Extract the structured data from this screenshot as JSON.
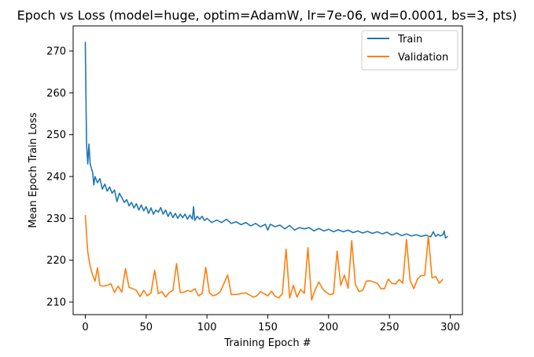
{
  "chart_data": {
    "type": "line",
    "title": "Epoch vs Loss (model=huge, optim=AdamW, lr=7e-06, wd=0.0001, bs=3, pts)",
    "xlabel": "Training Epoch #",
    "ylabel": "Mean Epoch Train Loss",
    "xlim": [
      -10,
      310
    ],
    "ylim": [
      207,
      276
    ],
    "xticks": [
      0,
      50,
      100,
      150,
      200,
      250,
      300
    ],
    "yticks": [
      210,
      220,
      230,
      240,
      250,
      260,
      270
    ],
    "legend_position": "top-right",
    "grid": false,
    "series": [
      {
        "name": "Train",
        "color": "#1f77b4",
        "points": [
          [
            0,
            272.2
          ],
          [
            1,
            248.0
          ],
          [
            2,
            243.0
          ],
          [
            3,
            247.8
          ],
          [
            4,
            243.0
          ],
          [
            5,
            242.0
          ],
          [
            6,
            241.0
          ],
          [
            7,
            238.0
          ],
          [
            8,
            240.0
          ],
          [
            10,
            238.5
          ],
          [
            12,
            239.5
          ],
          [
            14,
            237.0
          ],
          [
            16,
            238.2
          ],
          [
            18,
            236.5
          ],
          [
            20,
            237.5
          ],
          [
            22,
            236.0
          ],
          [
            24,
            236.8
          ],
          [
            26,
            234.0
          ],
          [
            28,
            236.0
          ],
          [
            30,
            235.0
          ],
          [
            32,
            233.8
          ],
          [
            34,
            234.5
          ],
          [
            36,
            233.0
          ],
          [
            38,
            233.8
          ],
          [
            40,
            232.5
          ],
          [
            42,
            233.5
          ],
          [
            44,
            232.0
          ],
          [
            46,
            233.2
          ],
          [
            48,
            231.8
          ],
          [
            50,
            232.8
          ],
          [
            52,
            231.2
          ],
          [
            54,
            232.5
          ],
          [
            56,
            231.0
          ],
          [
            58,
            232.0
          ],
          [
            60,
            231.5
          ],
          [
            62,
            232.6
          ],
          [
            64,
            231.0
          ],
          [
            66,
            232.0
          ],
          [
            68,
            230.5
          ],
          [
            70,
            231.5
          ],
          [
            72,
            230.2
          ],
          [
            74,
            231.2
          ],
          [
            76,
            230.0
          ],
          [
            78,
            231.0
          ],
          [
            80,
            230.2
          ],
          [
            82,
            231.0
          ],
          [
            84,
            229.8
          ],
          [
            86,
            230.8
          ],
          [
            88,
            229.8
          ],
          [
            89,
            232.8
          ],
          [
            90,
            229.5
          ],
          [
            92,
            230.5
          ],
          [
            94,
            229.8
          ],
          [
            96,
            230.5
          ],
          [
            98,
            229.5
          ],
          [
            100,
            230.0
          ],
          [
            104,
            229.0
          ],
          [
            108,
            229.6
          ],
          [
            112,
            229.0
          ],
          [
            116,
            229.8
          ],
          [
            120,
            228.8
          ],
          [
            124,
            229.2
          ],
          [
            128,
            228.5
          ],
          [
            132,
            229.0
          ],
          [
            136,
            228.2
          ],
          [
            140,
            228.8
          ],
          [
            144,
            228.0
          ],
          [
            148,
            228.6
          ],
          [
            150,
            227.2
          ],
          [
            152,
            228.6
          ],
          [
            156,
            228.0
          ],
          [
            160,
            228.4
          ],
          [
            164,
            227.5
          ],
          [
            168,
            228.3
          ],
          [
            172,
            227.2
          ],
          [
            176,
            227.8
          ],
          [
            180,
            227.5
          ],
          [
            184,
            227.8
          ],
          [
            188,
            227.0
          ],
          [
            192,
            227.6
          ],
          [
            196,
            227.0
          ],
          [
            200,
            227.4
          ],
          [
            204,
            226.8
          ],
          [
            208,
            227.3
          ],
          [
            212,
            226.8
          ],
          [
            216,
            227.2
          ],
          [
            220,
            226.6
          ],
          [
            224,
            227.0
          ],
          [
            228,
            226.5
          ],
          [
            232,
            226.9
          ],
          [
            236,
            226.4
          ],
          [
            240,
            226.8
          ],
          [
            244,
            226.3
          ],
          [
            248,
            226.7
          ],
          [
            252,
            226.0
          ],
          [
            256,
            226.5
          ],
          [
            260,
            225.9
          ],
          [
            264,
            226.3
          ],
          [
            268,
            225.8
          ],
          [
            272,
            226.1
          ],
          [
            276,
            225.7
          ],
          [
            280,
            226.0
          ],
          [
            284,
            225.6
          ],
          [
            286,
            226.8
          ],
          [
            288,
            225.7
          ],
          [
            290,
            226.2
          ],
          [
            292,
            225.8
          ],
          [
            294,
            226.1
          ],
          [
            295,
            227.0
          ],
          [
            296,
            225.3
          ],
          [
            298,
            225.7
          ]
        ]
      },
      {
        "name": "Validation",
        "color": "#ff7f0e",
        "points": [
          [
            0,
            230.8
          ],
          [
            2,
            222.0
          ],
          [
            4,
            218.5
          ],
          [
            6,
            216.5
          ],
          [
            8,
            215.0
          ],
          [
            10,
            218.2
          ],
          [
            12,
            214.0
          ],
          [
            15,
            213.8
          ],
          [
            18,
            214.0
          ],
          [
            21,
            214.4
          ],
          [
            24,
            212.3
          ],
          [
            27,
            213.8
          ],
          [
            30,
            212.4
          ],
          [
            33,
            218.0
          ],
          [
            36,
            213.5
          ],
          [
            39,
            213.2
          ],
          [
            42,
            212.8
          ],
          [
            45,
            211.3
          ],
          [
            48,
            212.8
          ],
          [
            51,
            211.5
          ],
          [
            54,
            212.2
          ],
          [
            57,
            217.6
          ],
          [
            60,
            212.0
          ],
          [
            63,
            212.5
          ],
          [
            66,
            211.2
          ],
          [
            69,
            212.3
          ],
          [
            72,
            212.8
          ],
          [
            75,
            219.2
          ],
          [
            78,
            212.3
          ],
          [
            81,
            212.3
          ],
          [
            84,
            212.8
          ],
          [
            87,
            212.5
          ],
          [
            90,
            213.2
          ],
          [
            93,
            211.5
          ],
          [
            96,
            212.0
          ],
          [
            99,
            218.3
          ],
          [
            102,
            212.2
          ],
          [
            105,
            211.5
          ],
          [
            108,
            211.8
          ],
          [
            111,
            212.5
          ],
          [
            114,
            214.5
          ],
          [
            117,
            216.5
          ],
          [
            120,
            211.8
          ],
          [
            123,
            211.8
          ],
          [
            126,
            211.9
          ],
          [
            129,
            212.1
          ],
          [
            132,
            212.2
          ],
          [
            135,
            211.7
          ],
          [
            138,
            211.2
          ],
          [
            141,
            211.5
          ],
          [
            144,
            212.5
          ],
          [
            147,
            212.0
          ],
          [
            150,
            211.5
          ],
          [
            153,
            212.6
          ],
          [
            156,
            211.4
          ],
          [
            159,
            211.0
          ],
          [
            162,
            212.0
          ],
          [
            165,
            222.7
          ],
          [
            168,
            211.0
          ],
          [
            171,
            214.0
          ],
          [
            174,
            211.2
          ],
          [
            177,
            213.0
          ],
          [
            180,
            212.1
          ],
          [
            183,
            223.0
          ],
          [
            186,
            210.5
          ],
          [
            189,
            213.0
          ],
          [
            192,
            214.8
          ],
          [
            195,
            213.2
          ],
          [
            198,
            212.3
          ],
          [
            201,
            211.8
          ],
          [
            204,
            212.0
          ],
          [
            207,
            222.2
          ],
          [
            210,
            214.0
          ],
          [
            213,
            216.5
          ],
          [
            216,
            213.3
          ],
          [
            219,
            224.7
          ],
          [
            222,
            214.2
          ],
          [
            225,
            212.5
          ],
          [
            228,
            212.8
          ],
          [
            231,
            215.0
          ],
          [
            234,
            215.1
          ],
          [
            237,
            214.8
          ],
          [
            240,
            214.5
          ],
          [
            243,
            213.2
          ],
          [
            246,
            213.2
          ],
          [
            249,
            215.5
          ],
          [
            252,
            214.5
          ],
          [
            255,
            214.3
          ],
          [
            258,
            215.4
          ],
          [
            261,
            214.5
          ],
          [
            264,
            225.0
          ],
          [
            267,
            215.2
          ],
          [
            270,
            213.2
          ],
          [
            273,
            215.5
          ],
          [
            276,
            216.3
          ],
          [
            279,
            216.4
          ],
          [
            282,
            225.8
          ],
          [
            285,
            215.8
          ],
          [
            288,
            216.1
          ],
          [
            291,
            214.5
          ],
          [
            294,
            215.5
          ]
        ]
      }
    ]
  }
}
